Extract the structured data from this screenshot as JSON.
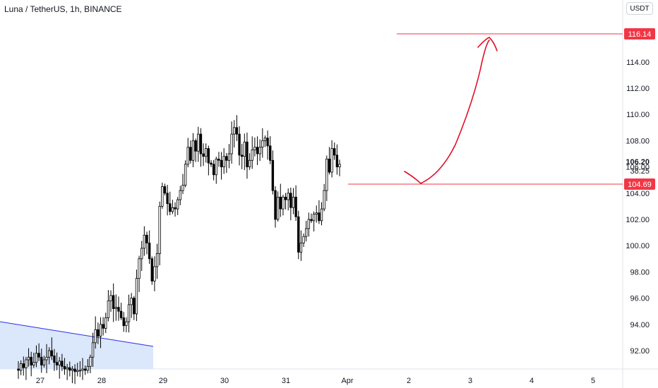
{
  "header": {
    "symbol": "Luna / TetherUS, 1h, BINANCE",
    "currency_button": "USDT"
  },
  "colors": {
    "up_body": "#ffffff",
    "down_body": "#000000",
    "candle_outline": "#000000",
    "level_line": "#f23645",
    "tag_bg": "#f23645",
    "trend_line": "#2a2ee6",
    "wedge_fill": "#dbe7fb",
    "drawing": "#e0102b",
    "axis_border": "#e0e3eb"
  },
  "chart_data": {
    "type": "candlestick",
    "title": "Luna / TetherUS, 1h, BINANCE",
    "y_ticks": [
      "92.00",
      "94.00",
      "96.00",
      "98.00",
      "100.00",
      "102.00",
      "104.00",
      "106.00",
      "108.00",
      "110.00",
      "112.00",
      "114.00"
    ],
    "x_ticks": [
      "27",
      "28",
      "29",
      "30",
      "31",
      "Apr",
      "2",
      "3",
      "4",
      "5"
    ],
    "ylim": [
      90.4,
      118.0
    ],
    "horizontal_levels": [
      {
        "value": 116.14,
        "label": "116.14"
      },
      {
        "value": 104.69,
        "label": "104.69"
      }
    ],
    "last_price": {
      "value": 106.2,
      "label": "106.20",
      "countdown": "38:25"
    },
    "closes": [
      90.5,
      91.0,
      90.7,
      91.3,
      91.5,
      90.9,
      91.1,
      91.8,
      91.5,
      90.9,
      91.3,
      91.5,
      92.0,
      91.6,
      91.1,
      90.9,
      91.2,
      90.8,
      90.6,
      90.7,
      90.5,
      90.6,
      90.4,
      90.5,
      90.5,
      90.6,
      90.5,
      90.8,
      91.5,
      92.6,
      93.6,
      93.1,
      94.0,
      93.7,
      94.5,
      95.8,
      96.2,
      95.2,
      95.3,
      95.0,
      94.5,
      93.9,
      94.2,
      95.5,
      96.0,
      94.8,
      97.5,
      99.0,
      99.8,
      100.8,
      100.2,
      99.0,
      97.3,
      98.4,
      99.4,
      103.0,
      104.5,
      104.0,
      103.2,
      102.6,
      102.9,
      102.8,
      103.5,
      104.2,
      104.6,
      106.2,
      107.5,
      106.5,
      108.0,
      107.2,
      108.5,
      107.0,
      106.8,
      107.4,
      106.3,
      106.2,
      105.4,
      106.6,
      106.5,
      106.0,
      106.8,
      106.5,
      107.0,
      108.5,
      109.0,
      108.5,
      106.9,
      106.8,
      107.9,
      106.0,
      106.5,
      107.3,
      107.5,
      107.0,
      107.5,
      108.0,
      108.2,
      107.6,
      106.5,
      104.2,
      102.0,
      103.7,
      102.8,
      103.7,
      103.5,
      104.0,
      102.9,
      103.7,
      102.2,
      99.5,
      100.2,
      100.7,
      101.3,
      102.0,
      101.9,
      102.4,
      102.5,
      101.9,
      102.8,
      104.2,
      106.6,
      105.6,
      107.4,
      106.9,
      106.0,
      106.2
    ],
    "levels_sequence_note": ""
  }
}
